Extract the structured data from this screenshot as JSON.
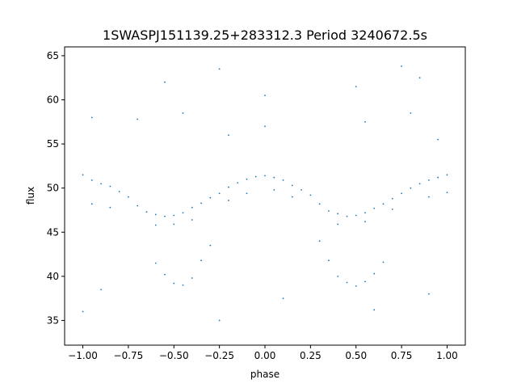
{
  "chart_data": {
    "type": "scatter",
    "title": "1SWASPJ151139.25+283312.3 Period 3240672.5s",
    "xlabel": "phase",
    "ylabel": "flux",
    "xlim": [
      -1.1,
      1.1
    ],
    "ylim": [
      32.2,
      66.0
    ],
    "xticks": [
      -1.0,
      -0.75,
      -0.5,
      -0.25,
      0.0,
      0.25,
      0.5,
      0.75,
      1.0
    ],
    "xtick_labels": [
      "−1.00",
      "−0.75",
      "−0.50",
      "−0.25",
      "0.00",
      "0.25",
      "0.50",
      "0.75",
      "1.00"
    ],
    "yticks": [
      35,
      40,
      45,
      50,
      55,
      60,
      65
    ],
    "ytick_labels": [
      "35",
      "40",
      "45",
      "50",
      "55",
      "60",
      "65"
    ],
    "grid": false,
    "marker_color": "#1f77b4",
    "description_of_trend": "phase-folded light curve mirrored over two cycles; main band near flux 47-53 with minima near phase -0.5 and 0.5 and maxima near phase -1, 0 and 1; a faint lower branch dips to about 39 at phase +/-0.5; sparse outliers between 34 and 65",
    "series": [
      {
        "points": [
          [
            -1.0,
            51.5
          ],
          [
            -0.95,
            50.9
          ],
          [
            -0.9,
            50.5
          ],
          [
            -0.85,
            50.2
          ],
          [
            -0.8,
            49.6
          ],
          [
            -0.75,
            49.0
          ],
          [
            -0.7,
            48.0
          ],
          [
            -0.65,
            47.3
          ],
          [
            -0.6,
            47.0
          ],
          [
            -0.55,
            46.8
          ],
          [
            -0.5,
            46.9
          ],
          [
            -0.45,
            47.2
          ],
          [
            -0.4,
            47.8
          ],
          [
            -0.35,
            48.3
          ],
          [
            -0.3,
            48.9
          ],
          [
            -0.25,
            49.4
          ],
          [
            -0.2,
            50.1
          ],
          [
            -0.15,
            50.6
          ],
          [
            -0.1,
            51.0
          ],
          [
            -0.05,
            51.3
          ],
          [
            0.0,
            51.4
          ],
          [
            0.05,
            51.2
          ],
          [
            0.1,
            50.9
          ],
          [
            0.15,
            50.3
          ],
          [
            0.2,
            49.8
          ],
          [
            0.25,
            49.2
          ],
          [
            0.3,
            48.2
          ],
          [
            0.35,
            47.4
          ],
          [
            0.4,
            47.1
          ],
          [
            0.45,
            46.8
          ],
          [
            0.5,
            46.9
          ],
          [
            0.55,
            47.2
          ],
          [
            0.6,
            47.7
          ],
          [
            0.65,
            48.2
          ],
          [
            0.7,
            48.8
          ],
          [
            0.75,
            49.4
          ],
          [
            0.8,
            50.0
          ],
          [
            0.85,
            50.5
          ],
          [
            0.9,
            50.9
          ],
          [
            0.95,
            51.2
          ],
          [
            1.0,
            51.5
          ],
          [
            -0.95,
            48.2
          ],
          [
            -0.85,
            47.8
          ],
          [
            -0.6,
            45.8
          ],
          [
            -0.5,
            45.9
          ],
          [
            -0.4,
            46.4
          ],
          [
            -0.2,
            48.6
          ],
          [
            -0.1,
            49.4
          ],
          [
            0.05,
            49.8
          ],
          [
            0.15,
            49.0
          ],
          [
            0.4,
            45.9
          ],
          [
            0.55,
            46.2
          ],
          [
            0.7,
            47.6
          ],
          [
            0.9,
            49.0
          ],
          [
            1.0,
            49.5
          ],
          [
            -0.6,
            41.5
          ],
          [
            -0.55,
            40.2
          ],
          [
            -0.5,
            39.2
          ],
          [
            -0.45,
            39.0
          ],
          [
            -0.4,
            39.8
          ],
          [
            -0.35,
            41.8
          ],
          [
            0.35,
            41.8
          ],
          [
            0.4,
            40.0
          ],
          [
            0.45,
            39.3
          ],
          [
            0.5,
            38.9
          ],
          [
            0.55,
            39.4
          ],
          [
            0.6,
            40.3
          ],
          [
            0.65,
            41.6
          ],
          [
            -0.25,
            63.5
          ],
          [
            0.75,
            63.8
          ],
          [
            -0.95,
            58.0
          ],
          [
            -0.7,
            57.8
          ],
          [
            -0.45,
            58.5
          ],
          [
            0.0,
            57.0
          ],
          [
            0.55,
            57.5
          ],
          [
            0.8,
            58.5
          ],
          [
            0.95,
            55.5
          ],
          [
            -0.2,
            56.0
          ],
          [
            0.3,
            44.0
          ],
          [
            -0.3,
            43.5
          ],
          [
            -1.0,
            36.0
          ],
          [
            -0.9,
            38.5
          ],
          [
            0.1,
            37.5
          ],
          [
            0.6,
            36.2
          ],
          [
            0.9,
            38.0
          ],
          [
            -0.25,
            35.0
          ],
          [
            0.0,
            60.5
          ],
          [
            0.5,
            61.5
          ],
          [
            -0.55,
            62.0
          ],
          [
            0.85,
            62.5
          ]
        ]
      }
    ]
  }
}
